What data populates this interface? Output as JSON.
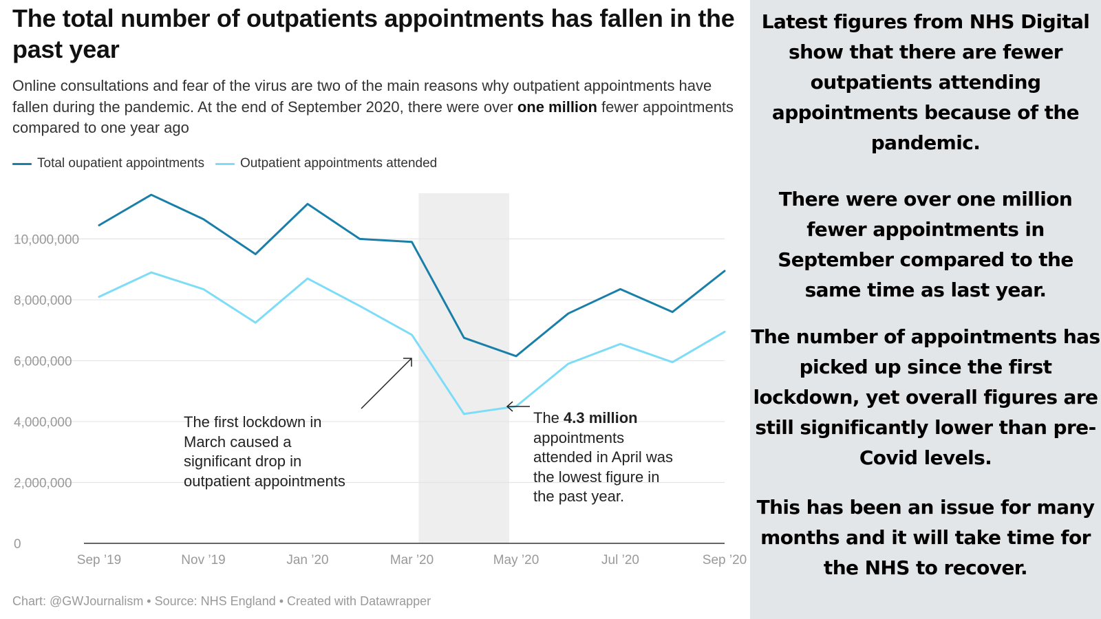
{
  "header": {
    "title": "The total number of outpatients appointments has fallen in the past year",
    "subtitle_part1": "Online consultations and fear of the virus are two of the main reasons why outpatient appointments have fallen during the pandemic. At the end of September 2020, there were over ",
    "subtitle_bold": "one million",
    "subtitle_part2": " fewer appointments compared to one year ago"
  },
  "legend": [
    {
      "label": "Total oupatient appointments",
      "color": "#1a7fa8"
    },
    {
      "label": "Outpatient appointments attended",
      "color": "#7ddcf7"
    }
  ],
  "chart_data": {
    "type": "line",
    "x": [
      "Sep 2019",
      "Oct 2019",
      "Nov 2019",
      "Dec 2019",
      "Jan 2020",
      "Feb 2020",
      "Mar 2020",
      "Apr 2020",
      "May 2020",
      "Jun 2020",
      "Jul 2020",
      "Aug 2020",
      "Sep 2020"
    ],
    "x_tick_labels": [
      "Sep ’19",
      "Nov ’19",
      "Jan ’20",
      "Mar ’20",
      "May ’20",
      "Jul ’20",
      "Sep ’20"
    ],
    "y_tick_labels": [
      "0",
      "2,000,000",
      "4,000,000",
      "6,000,000",
      "8,000,000",
      "10,000,000"
    ],
    "ylim": [
      0,
      11500000
    ],
    "grid": true,
    "legend_position": "top-left",
    "shaded_range": [
      "Mar 2020",
      "May 2020"
    ],
    "series": [
      {
        "name": "Total oupatient appointments",
        "color": "#1a7fa8",
        "values": [
          10450000,
          11450000,
          10650000,
          9500000,
          11150000,
          10000000,
          9900000,
          6750000,
          6150000,
          7550000,
          8350000,
          7600000,
          8950000
        ]
      },
      {
        "name": "Outpatient appointments attended",
        "color": "#7ddcf7",
        "values": [
          8100000,
          8900000,
          8350000,
          7250000,
          8700000,
          7800000,
          6850000,
          4250000,
          4500000,
          5900000,
          6550000,
          5950000,
          6950000
        ]
      }
    ],
    "annotations": [
      {
        "text": "The first lockdown in March caused a significant drop in outpatient appointments"
      },
      {
        "text_part1": "The ",
        "text_bold": "4.3 million",
        "text_part2": " appointments attended in April was the lowest figure in the past year."
      }
    ]
  },
  "source": "Chart: @GWJournalism • Source: NHS England • Created with Datawrapper",
  "sidebar": {
    "paragraphs": [
      "Latest figures from NHS Digital show that there are fewer outpatients attending appointments because of the pandemic.",
      "There were over one million fewer appointments in September compared to the same time as last year.",
      "The number of appointments has picked up since the first lockdown, yet overall figures are still significantly lower than pre-Covid levels.",
      "This has been an issue for many months and it will take time for the NHS to recover."
    ]
  },
  "colors": {
    "panel_background": "#e3e6e9",
    "shade": "#eeeeee"
  }
}
